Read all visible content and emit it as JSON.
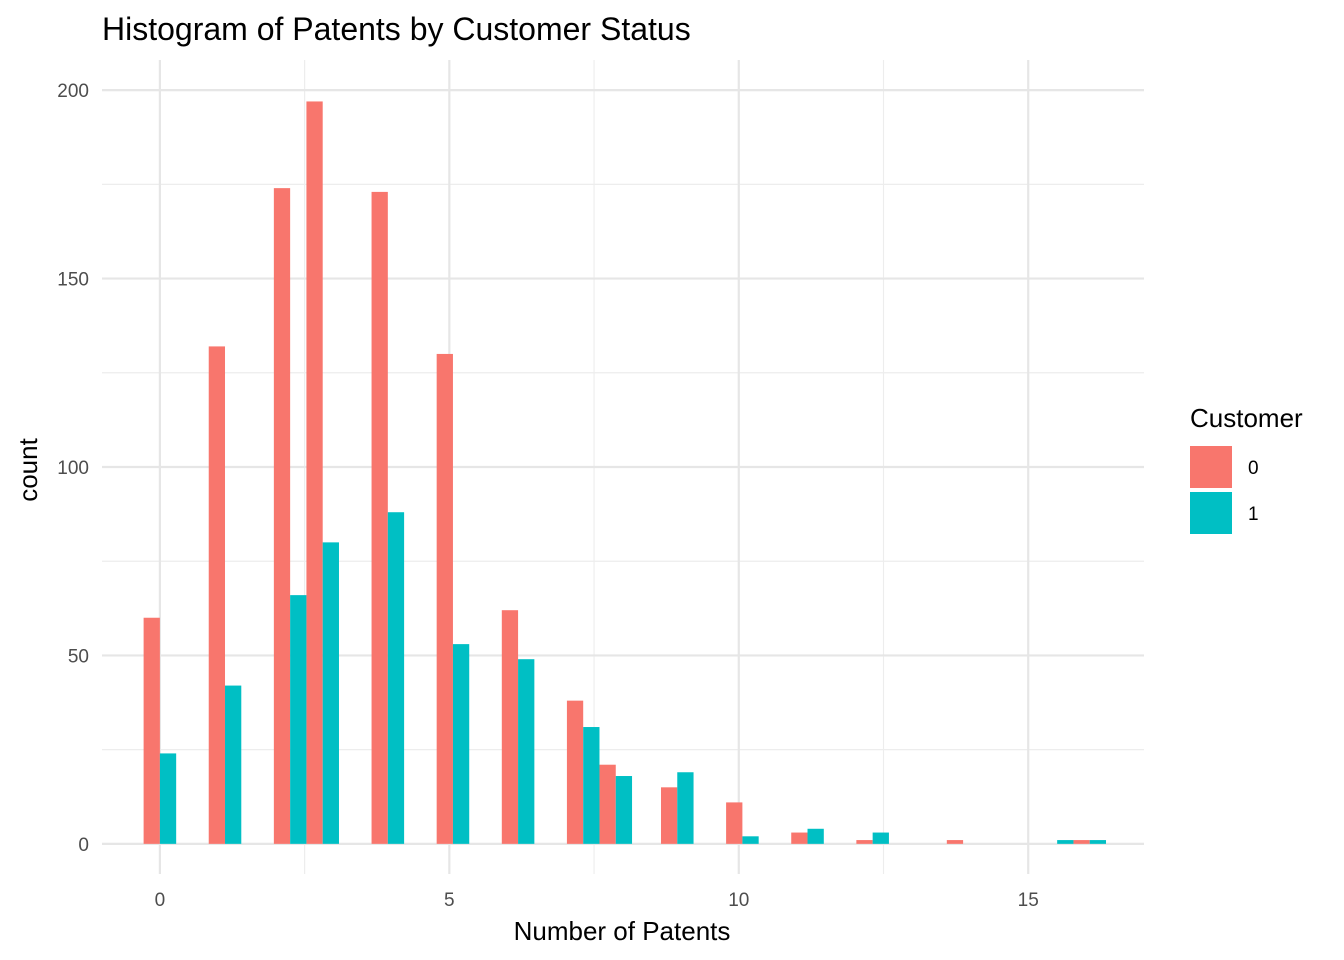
{
  "chart_data": {
    "type": "bar",
    "title": "Histogram of Patents by Customer Status",
    "xlabel": "Number of Patents",
    "ylabel": "count",
    "xlim": [
      -1,
      17
    ],
    "ylim": [
      -8,
      208
    ],
    "xticks": [
      0,
      5,
      10,
      15
    ],
    "yticks": [
      0,
      50,
      100,
      150,
      200
    ],
    "grid": true,
    "legend": {
      "title": "Customer",
      "position": "right"
    },
    "colors": {
      "0": "#F8766D",
      "1": "#00BFC4"
    },
    "bin_width": 0.5625,
    "bin_centers": [
      0,
      1.125,
      2.25,
      2.8125,
      3.9375,
      5.0625,
      6.1875,
      7.3125,
      7.875,
      8.9375,
      10.0625,
      11.1875,
      12.3125,
      13.875,
      15.5,
      16.0625
    ],
    "series": [
      {
        "name": "0",
        "values": [
          60,
          132,
          174,
          197,
          173,
          130,
          62,
          38,
          21,
          15,
          11,
          3,
          1,
          1,
          0,
          1
        ]
      },
      {
        "name": "1",
        "values": [
          24,
          42,
          66,
          80,
          88,
          53,
          49,
          31,
          18,
          19,
          2,
          4,
          3,
          0,
          1,
          1
        ]
      }
    ]
  }
}
